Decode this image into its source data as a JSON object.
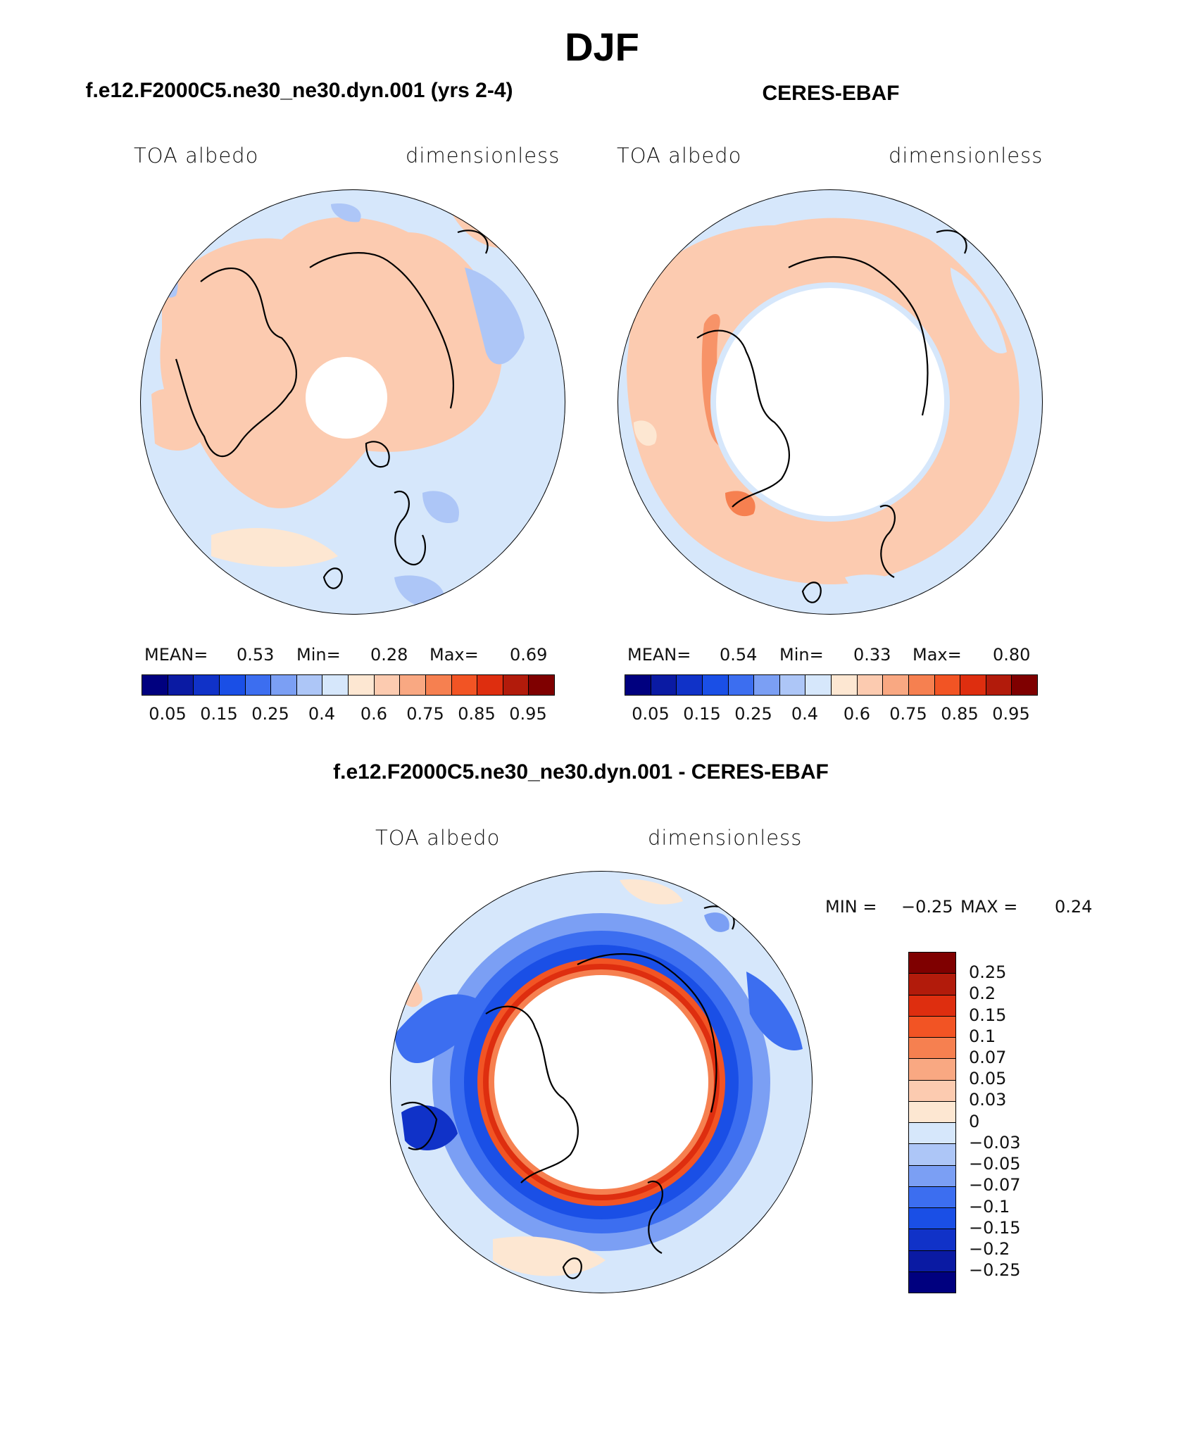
{
  "page_title": "DJF",
  "panels": [
    {
      "case_title": "f.e12.F2000C5.ne30_ne30.dyn.001 (yrs 2-4)",
      "variable": "TOA albedo",
      "units": "dimensionless",
      "stats": {
        "mean_label": "MEAN=",
        "mean": "0.53",
        "min_label": "Min=",
        "min": "0.28",
        "max_label": "Max=",
        "max": "0.69"
      }
    },
    {
      "case_title": "CERES-EBAF",
      "variable": "TOA albedo",
      "units": "dimensionless",
      "stats": {
        "mean_label": "MEAN=",
        "mean": "0.54",
        "min_label": "Min=",
        "min": "0.33",
        "max_label": "Max=",
        "max": "0.80"
      }
    }
  ],
  "colorbar": {
    "colors": [
      "#00007f",
      "#0a1aa3",
      "#1032c8",
      "#1a4fe6",
      "#3c6ef0",
      "#7b9ff4",
      "#adc6f7",
      "#d6e7fb",
      "#fde7d2",
      "#fccbb0",
      "#f9a882",
      "#f68050",
      "#f25424",
      "#de2e0f",
      "#b21b0b",
      "#7f0000"
    ],
    "tick_labels": [
      "0.05",
      "0.15",
      "0.25",
      "0.4",
      "0.6",
      "0.75",
      "0.85",
      "0.95"
    ]
  },
  "difference": {
    "title": "f.e12.F2000C5.ne30_ne30.dyn.001 - CERES-EBAF",
    "variable": "TOA albedo",
    "units": "dimensionless",
    "min_label": "MIN =",
    "min": "−0.25",
    "max_label": "MAX =",
    "max": "0.24",
    "colorbar": {
      "colors": [
        "#7f0000",
        "#b21b0b",
        "#de2e0f",
        "#f25424",
        "#f68050",
        "#f9a882",
        "#fccbb0",
        "#fde7d2",
        "#d6e7fb",
        "#adc6f7",
        "#7b9ff4",
        "#3c6ef0",
        "#1a4fe6",
        "#1032c8",
        "#0a1aa3",
        "#00007f"
      ],
      "tick_labels": [
        "0.25",
        "0.2",
        "0.15",
        "0.1",
        "0.07",
        "0.05",
        "0.03",
        "0",
        "−0.03",
        "−0.05",
        "−0.07",
        "−0.1",
        "−0.15",
        "−0.2",
        "−0.25"
      ]
    }
  }
}
